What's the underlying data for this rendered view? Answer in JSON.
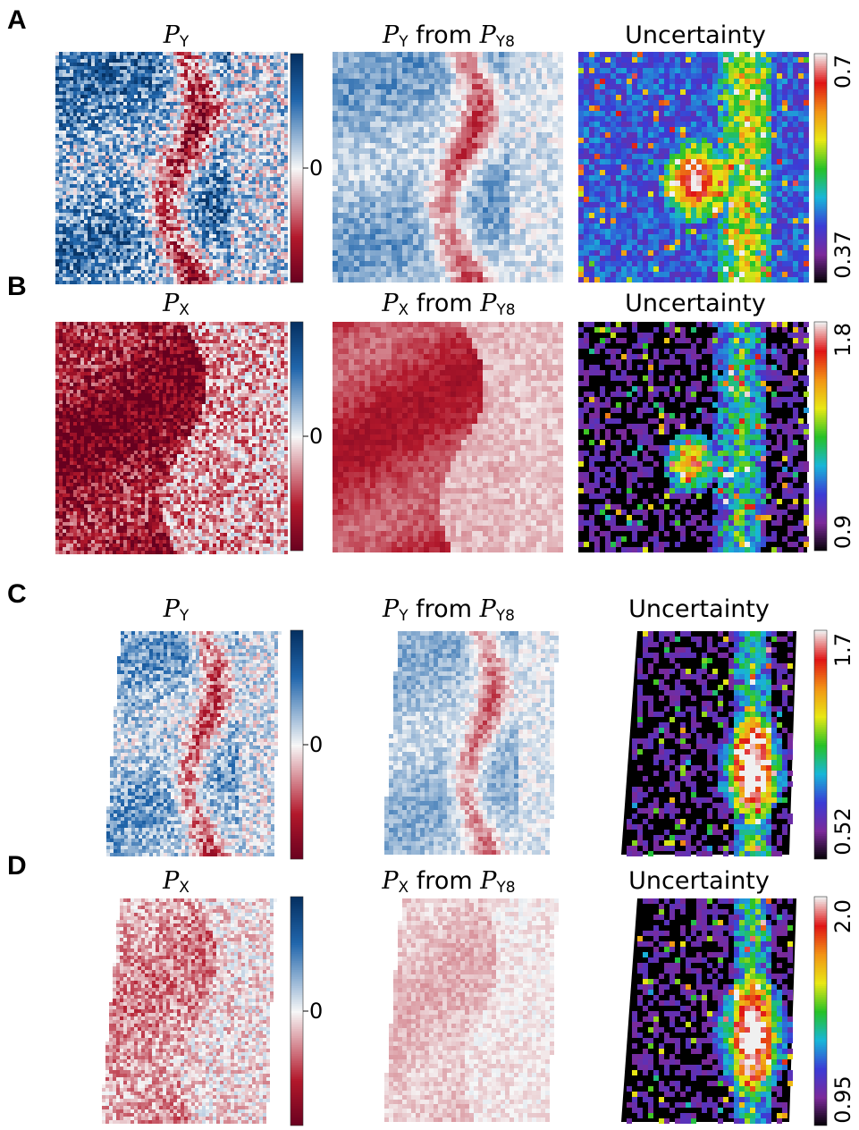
{
  "panels": [
    {
      "letter": "A",
      "titles": [
        {
          "sym": "P",
          "sub": "Y",
          "from": "",
          "fromSym": "",
          "fromSub": ""
        },
        {
          "sym": "P",
          "sub": "Y",
          "from": "from",
          "fromSym": "P",
          "fromSub": "Y8"
        },
        {
          "plain": "Uncertainty"
        }
      ],
      "div_colorbar_label": "0",
      "unc_ticks": [
        "0.7",
        "0.37"
      ]
    },
    {
      "letter": "B",
      "titles": [
        {
          "sym": "P",
          "sub": "X"
        },
        {
          "sym": "P",
          "sub": "X",
          "from": "from",
          "fromSym": "P",
          "fromSub": "Y8"
        },
        {
          "plain": "Uncertainty"
        }
      ],
      "div_colorbar_label": "0",
      "unc_ticks": [
        "1.8",
        "0.9"
      ]
    },
    {
      "letter": "C",
      "titles": [
        {
          "sym": "P",
          "sub": "Y"
        },
        {
          "sym": "P",
          "sub": "Y",
          "from": "from",
          "fromSym": "P",
          "fromSub": "Y8"
        },
        {
          "plain": "Uncertainty"
        }
      ],
      "div_colorbar_label": "0",
      "unc_ticks": [
        "1.7",
        "0.52"
      ]
    },
    {
      "letter": "D",
      "titles": [
        {
          "sym": "P",
          "sub": "X"
        },
        {
          "sym": "P",
          "sub": "X",
          "from": "from",
          "fromSym": "P",
          "fromSub": "Y8"
        },
        {
          "plain": "Uncertainty"
        }
      ],
      "div_colorbar_label": "0",
      "unc_ticks": [
        "2.0",
        "0.95"
      ]
    }
  ],
  "colors": {
    "diverging_low": "#67001f",
    "diverging_mid": "#f7f7f7",
    "diverging_high": "#053061",
    "uncertainty_scale": [
      "#000000",
      "#7b2a9a",
      "#3b3bd6",
      "#18b6d8",
      "#27c227",
      "#e8e815",
      "#f29315",
      "#e01515",
      "#f0f0f0"
    ]
  }
}
